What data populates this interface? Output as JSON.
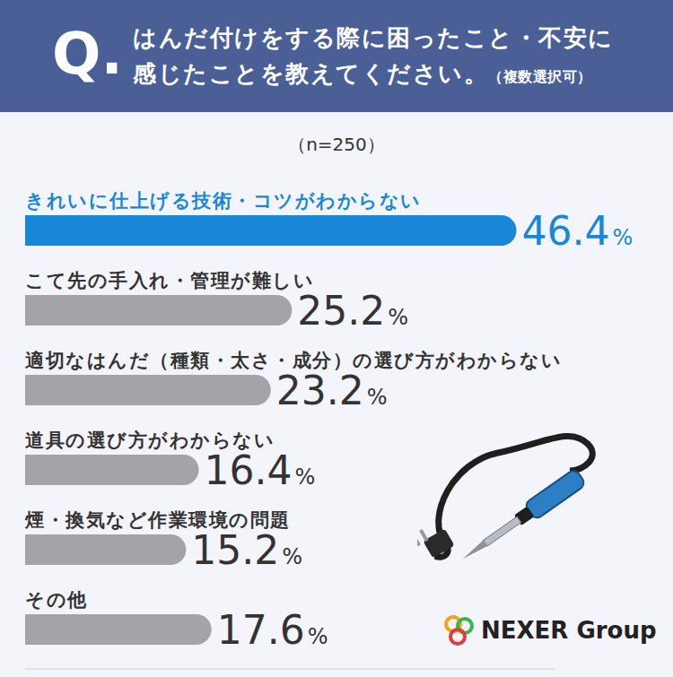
{
  "chart_data": {
    "type": "bar",
    "orientation": "horizontal",
    "header_label": "Q.",
    "title": "はんだ付けをする際に困ったこと・不安に感じたことを教えてください。",
    "note": "（複数選択可）",
    "subtitle": "（n=250）",
    "categories": [
      "きれいに仕上げる技術・コツがわからない",
      "こて先の手入れ・管理が難しい",
      "適切なはんだ（種類・太さ・成分）の選び方がわからない",
      "道具の選び方がわからない",
      "煙・換気など作業環境の問題",
      "その他"
    ],
    "values": [
      46.4,
      25.2,
      23.2,
      16.4,
      15.2,
      17.6
    ],
    "value_labels": [
      "46.4%",
      "25.2%",
      "23.2%",
      "16.4%",
      "15.2%",
      "17.6%"
    ],
    "colors": [
      "#1a86d8",
      "#a3a3a8",
      "#a3a3a8",
      "#a3a3a8",
      "#a3a3a8",
      "#a3a3a8"
    ],
    "xlim": [
      0,
      50
    ],
    "tick_labels": false,
    "grid": false,
    "data_labels": true,
    "source": "NEXER Group"
  }
}
